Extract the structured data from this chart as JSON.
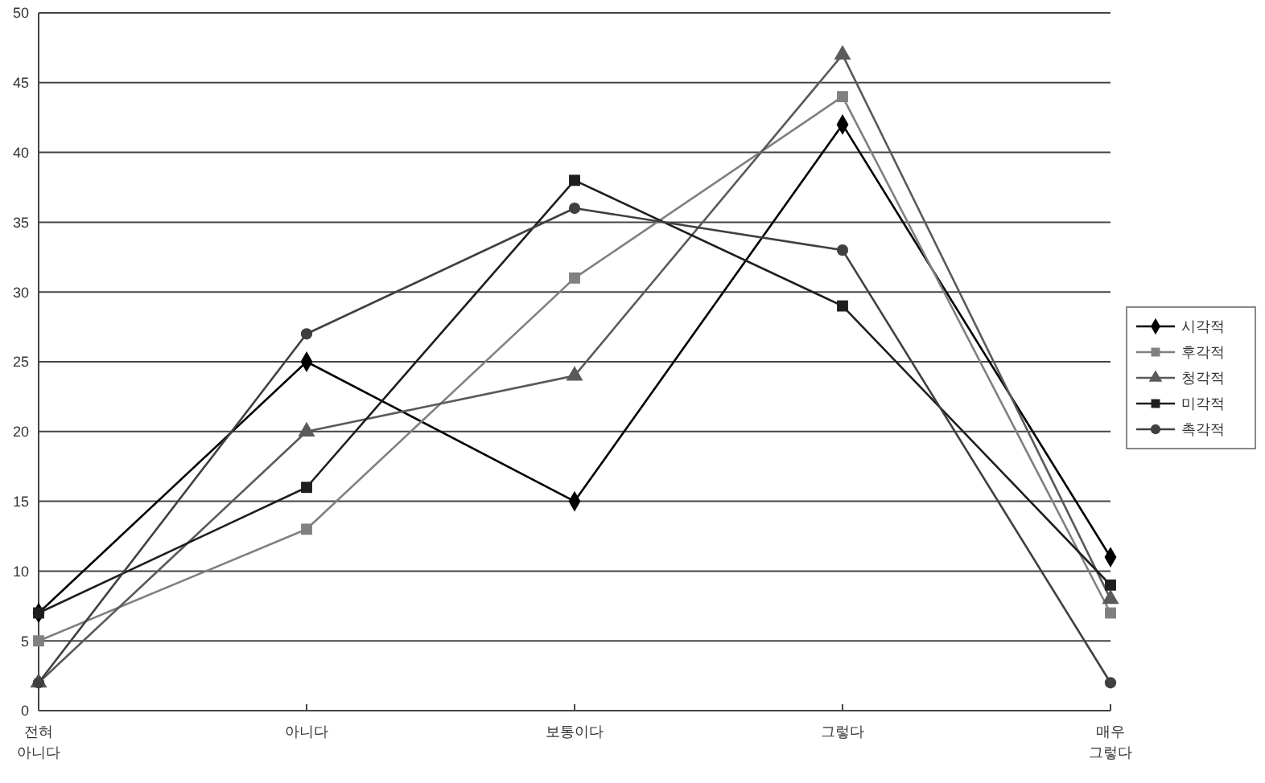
{
  "chart_data": {
    "type": "line",
    "categories": [
      "전혀 아니다",
      "아니다",
      "보통이다",
      "그렇다",
      "매우 그렇다"
    ],
    "series": [
      {
        "name": "시각적",
        "color": "#000000",
        "marker": "diamond",
        "values": [
          7,
          25,
          15,
          42,
          11
        ]
      },
      {
        "name": "후각적",
        "color": "#808080",
        "marker": "square",
        "values": [
          5,
          13,
          31,
          44,
          7
        ]
      },
      {
        "name": "청각적",
        "color": "#5a5a5a",
        "marker": "triangle",
        "values": [
          2,
          20,
          24,
          47,
          8
        ]
      },
      {
        "name": "미각적",
        "color": "#1e1e1e",
        "marker": "square",
        "values": [
          7,
          16,
          38,
          29,
          9
        ]
      },
      {
        "name": "촉각적",
        "color": "#404040",
        "marker": "circle",
        "values": [
          2,
          27,
          36,
          33,
          2
        ]
      }
    ],
    "ylim": [
      0,
      50
    ],
    "yticks": [
      0,
      5,
      10,
      15,
      20,
      25,
      30,
      35,
      40,
      45,
      50
    ],
    "grid": "y",
    "legend": "right"
  }
}
